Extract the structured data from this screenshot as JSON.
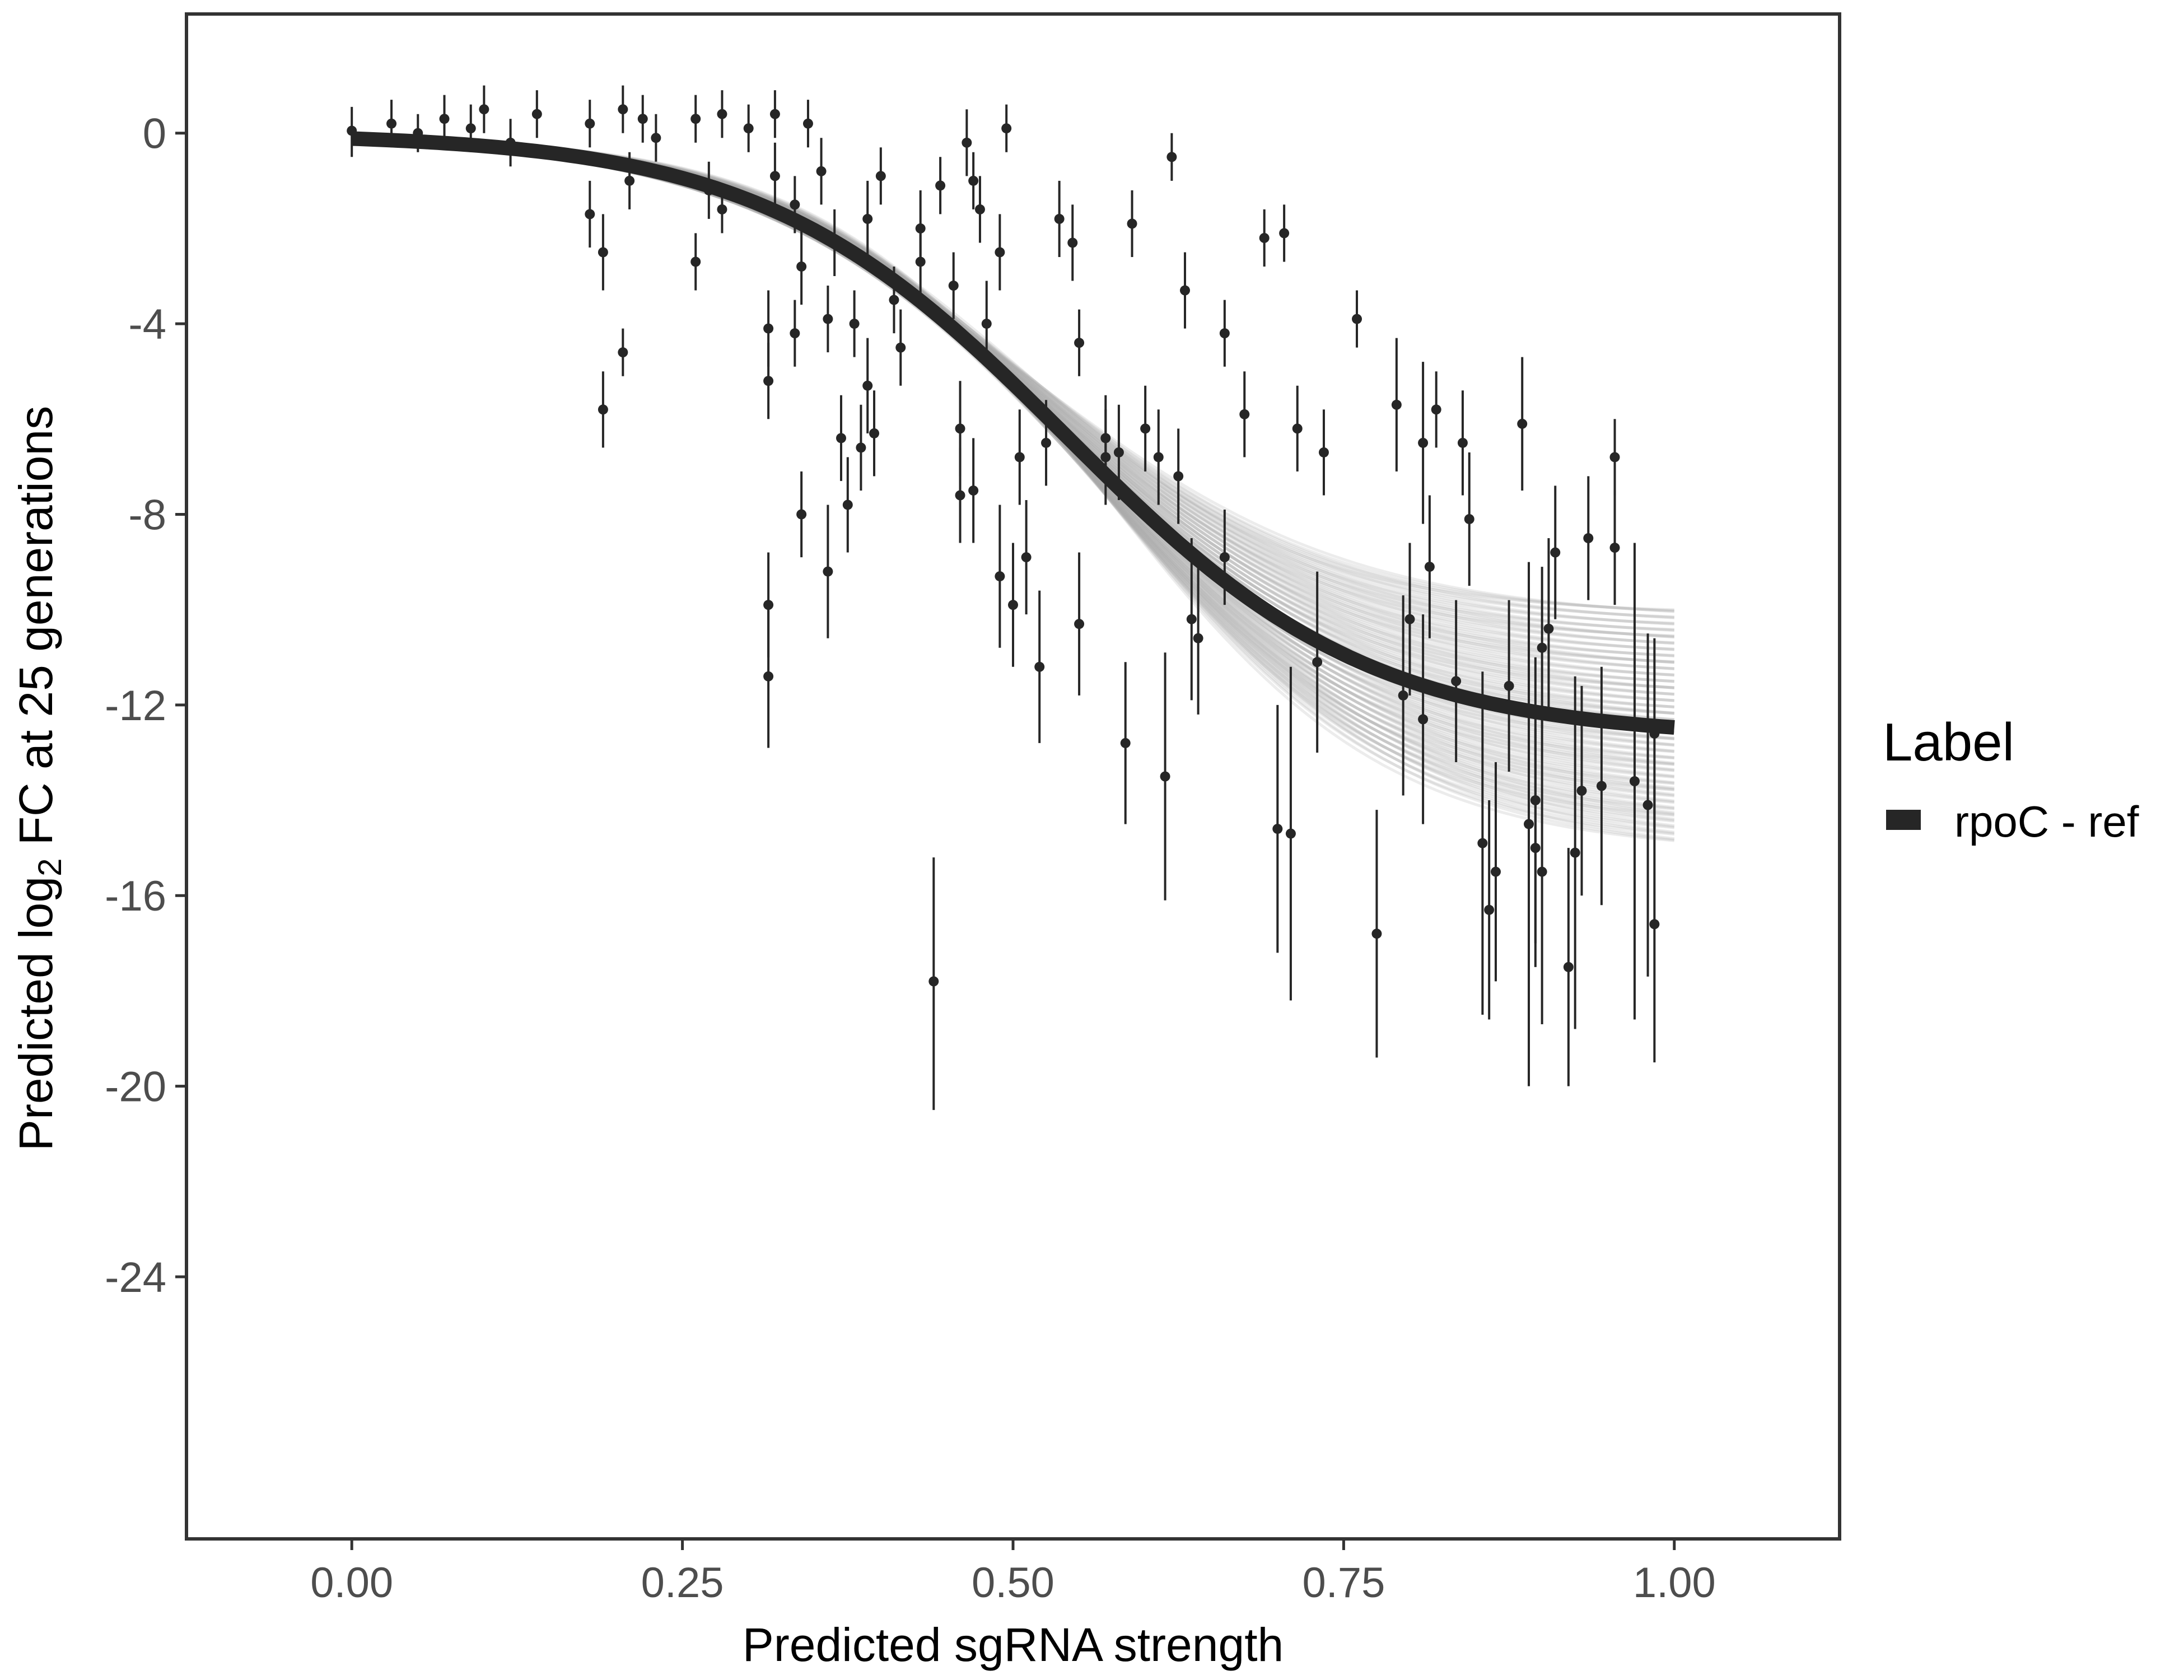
{
  "chart_data": {
    "type": "scatter",
    "xlabel": "Predicted sgRNA strength",
    "ylabel_parts": [
      "Predicted  log",
      "2",
      " FC at 25 generations"
    ],
    "xlim": [
      -0.125,
      1.125
    ],
    "ylim": [
      -29.5,
      2.5
    ],
    "x_ticks": [
      0,
      0.25,
      0.5,
      0.75,
      1
    ],
    "x_tick_labels": [
      "0.00",
      "0.25",
      "0.50",
      "0.75",
      "1.00"
    ],
    "y_ticks": [
      0,
      -4,
      -8,
      -12,
      -16,
      -20,
      -24
    ],
    "y_tick_labels": [
      "0",
      "-4",
      "-8",
      "-12",
      "-16",
      "-20",
      "-24"
    ],
    "grid": false,
    "legend": {
      "title": "Label",
      "position": "right",
      "entries": [
        {
          "label": "rpoC - ref",
          "color": "#262626"
        }
      ]
    },
    "fit_curve": {
      "series": "rpoC - ref",
      "form": "logistic",
      "upper": 0,
      "lower": -12.7,
      "midpoint": 0.54,
      "scale": 0.115,
      "color": "#262626"
    },
    "posterior_band": {
      "color": "#aaaaaa",
      "lower_at_x1": -15.2,
      "upper_at_x1": -10.1
    },
    "points": [
      {
        "x": 0.0,
        "y": 0.05,
        "lo": -0.5,
        "hi": 0.55
      },
      {
        "x": 0.03,
        "y": 0.2,
        "lo": -0.3,
        "hi": 0.7
      },
      {
        "x": 0.05,
        "y": 0.0,
        "lo": -0.4,
        "hi": 0.4
      },
      {
        "x": 0.07,
        "y": 0.3,
        "lo": -0.2,
        "hi": 0.8
      },
      {
        "x": 0.09,
        "y": 0.1,
        "lo": -0.4,
        "hi": 0.6
      },
      {
        "x": 0.1,
        "y": 0.5,
        "lo": 0.0,
        "hi": 1.0
      },
      {
        "x": 0.12,
        "y": -0.2,
        "lo": -0.7,
        "hi": 0.3
      },
      {
        "x": 0.14,
        "y": 0.4,
        "lo": -0.1,
        "hi": 0.9
      },
      {
        "x": 0.18,
        "y": 0.2,
        "lo": -0.3,
        "hi": 0.7
      },
      {
        "x": 0.18,
        "y": -1.7,
        "lo": -2.4,
        "hi": -1.0
      },
      {
        "x": 0.19,
        "y": -2.5,
        "lo": -3.3,
        "hi": -1.7
      },
      {
        "x": 0.19,
        "y": -5.8,
        "lo": -6.6,
        "hi": -5.0
      },
      {
        "x": 0.205,
        "y": -4.6,
        "lo": -5.1,
        "hi": -4.1
      },
      {
        "x": 0.205,
        "y": 0.5,
        "lo": 0.0,
        "hi": 1.0
      },
      {
        "x": 0.21,
        "y": -1.0,
        "lo": -1.6,
        "hi": -0.4
      },
      {
        "x": 0.22,
        "y": 0.3,
        "lo": -0.2,
        "hi": 0.8
      },
      {
        "x": 0.23,
        "y": -0.1,
        "lo": -0.6,
        "hi": 0.4
      },
      {
        "x": 0.26,
        "y": -2.7,
        "lo": -3.3,
        "hi": -2.1
      },
      {
        "x": 0.26,
        "y": 0.3,
        "lo": -0.2,
        "hi": 0.8
      },
      {
        "x": 0.27,
        "y": -1.2,
        "lo": -1.8,
        "hi": -0.6
      },
      {
        "x": 0.28,
        "y": 0.4,
        "lo": -0.1,
        "hi": 0.9
      },
      {
        "x": 0.28,
        "y": -1.6,
        "lo": -2.1,
        "hi": -1.1
      },
      {
        "x": 0.3,
        "y": 0.1,
        "lo": -0.4,
        "hi": 0.6
      },
      {
        "x": 0.315,
        "y": -4.1,
        "lo": -4.9,
        "hi": -3.3
      },
      {
        "x": 0.315,
        "y": -5.2,
        "lo": -6.0,
        "hi": -4.4
      },
      {
        "x": 0.315,
        "y": -9.9,
        "lo": -11.0,
        "hi": -8.8
      },
      {
        "x": 0.315,
        "y": -11.4,
        "lo": -12.9,
        "hi": -9.9
      },
      {
        "x": 0.32,
        "y": -0.9,
        "lo": -1.6,
        "hi": -0.2
      },
      {
        "x": 0.32,
        "y": 0.4,
        "lo": -0.1,
        "hi": 0.9
      },
      {
        "x": 0.335,
        "y": -1.5,
        "lo": -2.1,
        "hi": -0.9
      },
      {
        "x": 0.335,
        "y": -4.2,
        "lo": -4.9,
        "hi": -3.5
      },
      {
        "x": 0.34,
        "y": -2.8,
        "lo": -3.6,
        "hi": -2.0
      },
      {
        "x": 0.34,
        "y": -8.0,
        "lo": -8.9,
        "hi": -7.1
      },
      {
        "x": 0.345,
        "y": 0.2,
        "lo": -0.3,
        "hi": 0.7
      },
      {
        "x": 0.355,
        "y": -0.8,
        "lo": -1.5,
        "hi": -0.1
      },
      {
        "x": 0.36,
        "y": -9.2,
        "lo": -10.6,
        "hi": -7.8
      },
      {
        "x": 0.36,
        "y": -3.9,
        "lo": -4.6,
        "hi": -3.2
      },
      {
        "x": 0.365,
        "y": -2.3,
        "lo": -3.0,
        "hi": -1.6
      },
      {
        "x": 0.37,
        "y": -6.4,
        "lo": -7.3,
        "hi": -5.5
      },
      {
        "x": 0.375,
        "y": -7.8,
        "lo": -8.8,
        "hi": -6.8
      },
      {
        "x": 0.38,
        "y": -4.0,
        "lo": -4.7,
        "hi": -3.3
      },
      {
        "x": 0.385,
        "y": -6.6,
        "lo": -7.5,
        "hi": -5.7
      },
      {
        "x": 0.39,
        "y": -5.3,
        "lo": -6.3,
        "hi": -4.3
      },
      {
        "x": 0.39,
        "y": -1.8,
        "lo": -2.6,
        "hi": -1.0
      },
      {
        "x": 0.395,
        "y": -6.3,
        "lo": -7.2,
        "hi": -5.4
      },
      {
        "x": 0.4,
        "y": -0.9,
        "lo": -1.5,
        "hi": -0.3
      },
      {
        "x": 0.41,
        "y": -3.5,
        "lo": -4.2,
        "hi": -2.8
      },
      {
        "x": 0.415,
        "y": -4.5,
        "lo": -5.3,
        "hi": -3.7
      },
      {
        "x": 0.43,
        "y": -2.0,
        "lo": -2.8,
        "hi": -1.2
      },
      {
        "x": 0.43,
        "y": -2.7,
        "lo": -3.5,
        "hi": -1.9
      },
      {
        "x": 0.44,
        "y": -17.8,
        "lo": -20.5,
        "hi": -15.2
      },
      {
        "x": 0.445,
        "y": -1.1,
        "lo": -1.7,
        "hi": -0.5
      },
      {
        "x": 0.455,
        "y": -3.2,
        "lo": -3.9,
        "hi": -2.5
      },
      {
        "x": 0.46,
        "y": -6.2,
        "lo": -7.2,
        "hi": -5.2
      },
      {
        "x": 0.46,
        "y": -7.6,
        "lo": -8.6,
        "hi": -6.6
      },
      {
        "x": 0.465,
        "y": -0.2,
        "lo": -0.9,
        "hi": 0.5
      },
      {
        "x": 0.47,
        "y": -7.5,
        "lo": -8.6,
        "hi": -6.4
      },
      {
        "x": 0.47,
        "y": -1.0,
        "lo": -1.6,
        "hi": -0.4
      },
      {
        "x": 0.475,
        "y": -1.6,
        "lo": -2.3,
        "hi": -0.9
      },
      {
        "x": 0.48,
        "y": -4.0,
        "lo": -4.9,
        "hi": -3.1
      },
      {
        "x": 0.49,
        "y": -9.3,
        "lo": -10.8,
        "hi": -7.8
      },
      {
        "x": 0.49,
        "y": -2.5,
        "lo": -3.3,
        "hi": -1.7
      },
      {
        "x": 0.495,
        "y": 0.1,
        "lo": -0.4,
        "hi": 0.6
      },
      {
        "x": 0.5,
        "y": -9.9,
        "lo": -11.2,
        "hi": -8.6
      },
      {
        "x": 0.505,
        "y": -6.8,
        "lo": -7.8,
        "hi": -5.8
      },
      {
        "x": 0.51,
        "y": -8.9,
        "lo": -10.1,
        "hi": -7.7
      },
      {
        "x": 0.52,
        "y": -11.2,
        "lo": -12.8,
        "hi": -9.6
      },
      {
        "x": 0.525,
        "y": -6.5,
        "lo": -7.4,
        "hi": -5.6
      },
      {
        "x": 0.535,
        "y": -1.8,
        "lo": -2.6,
        "hi": -1.0
      },
      {
        "x": 0.545,
        "y": -2.3,
        "lo": -3.1,
        "hi": -1.5
      },
      {
        "x": 0.55,
        "y": -4.4,
        "lo": -5.1,
        "hi": -3.7
      },
      {
        "x": 0.55,
        "y": -10.3,
        "lo": -11.8,
        "hi": -8.8
      },
      {
        "x": 0.57,
        "y": -6.8,
        "lo": -7.8,
        "hi": -5.8
      },
      {
        "x": 0.57,
        "y": -6.4,
        "lo": -7.3,
        "hi": -5.5
      },
      {
        "x": 0.58,
        "y": -6.7,
        "lo": -7.7,
        "hi": -5.7
      },
      {
        "x": 0.585,
        "y": -12.8,
        "lo": -14.5,
        "hi": -11.1
      },
      {
        "x": 0.59,
        "y": -1.9,
        "lo": -2.6,
        "hi": -1.2
      },
      {
        "x": 0.6,
        "y": -6.2,
        "lo": -7.1,
        "hi": -5.3
      },
      {
        "x": 0.61,
        "y": -6.8,
        "lo": -7.8,
        "hi": -5.8
      },
      {
        "x": 0.615,
        "y": -13.5,
        "lo": -16.1,
        "hi": -10.9
      },
      {
        "x": 0.62,
        "y": -0.5,
        "lo": -1.0,
        "hi": 0.0
      },
      {
        "x": 0.625,
        "y": -7.2,
        "lo": -8.2,
        "hi": -6.2
      },
      {
        "x": 0.63,
        "y": -3.3,
        "lo": -4.1,
        "hi": -2.5
      },
      {
        "x": 0.635,
        "y": -10.2,
        "lo": -11.9,
        "hi": -8.5
      },
      {
        "x": 0.64,
        "y": -10.6,
        "lo": -12.2,
        "hi": -9.0
      },
      {
        "x": 0.66,
        "y": -8.9,
        "lo": -9.9,
        "hi": -7.9
      },
      {
        "x": 0.66,
        "y": -4.2,
        "lo": -4.9,
        "hi": -3.5
      },
      {
        "x": 0.675,
        "y": -5.9,
        "lo": -6.8,
        "hi": -5.0
      },
      {
        "x": 0.69,
        "y": -2.2,
        "lo": -2.8,
        "hi": -1.6
      },
      {
        "x": 0.7,
        "y": -14.6,
        "lo": -17.2,
        "hi": -12.0
      },
      {
        "x": 0.705,
        "y": -2.1,
        "lo": -2.7,
        "hi": -1.5
      },
      {
        "x": 0.71,
        "y": -14.7,
        "lo": -18.2,
        "hi": -11.2
      },
      {
        "x": 0.715,
        "y": -6.2,
        "lo": -7.1,
        "hi": -5.3
      },
      {
        "x": 0.73,
        "y": -11.1,
        "lo": -13.0,
        "hi": -9.2
      },
      {
        "x": 0.735,
        "y": -6.7,
        "lo": -7.6,
        "hi": -5.8
      },
      {
        "x": 0.76,
        "y": -3.9,
        "lo": -4.5,
        "hi": -3.3
      },
      {
        "x": 0.775,
        "y": -16.8,
        "lo": -19.4,
        "hi": -14.2
      },
      {
        "x": 0.79,
        "y": -5.7,
        "lo": -7.1,
        "hi": -4.3
      },
      {
        "x": 0.795,
        "y": -11.8,
        "lo": -13.9,
        "hi": -9.7
      },
      {
        "x": 0.8,
        "y": -10.2,
        "lo": -11.8,
        "hi": -8.6
      },
      {
        "x": 0.81,
        "y": -6.5,
        "lo": -8.2,
        "hi": -4.8
      },
      {
        "x": 0.81,
        "y": -12.3,
        "lo": -14.5,
        "hi": -10.1
      },
      {
        "x": 0.815,
        "y": -9.1,
        "lo": -10.6,
        "hi": -7.6
      },
      {
        "x": 0.82,
        "y": -5.8,
        "lo": -6.6,
        "hi": -5.0
      },
      {
        "x": 0.835,
        "y": -11.5,
        "lo": -13.2,
        "hi": -9.8
      },
      {
        "x": 0.84,
        "y": -6.5,
        "lo": -7.6,
        "hi": -5.4
      },
      {
        "x": 0.845,
        "y": -8.1,
        "lo": -9.5,
        "hi": -6.7
      },
      {
        "x": 0.855,
        "y": -14.9,
        "lo": -18.5,
        "hi": -11.3
      },
      {
        "x": 0.86,
        "y": -16.3,
        "lo": -18.6,
        "hi": -14.0
      },
      {
        "x": 0.865,
        "y": -15.5,
        "lo": -17.8,
        "hi": -13.2
      },
      {
        "x": 0.875,
        "y": -11.6,
        "lo": -13.4,
        "hi": -9.8
      },
      {
        "x": 0.885,
        "y": -6.1,
        "lo": -7.5,
        "hi": -4.7
      },
      {
        "x": 0.89,
        "y": -14.5,
        "lo": -20.0,
        "hi": -9.0
      },
      {
        "x": 0.895,
        "y": -15.0,
        "lo": -17.5,
        "hi": -12.5
      },
      {
        "x": 0.905,
        "y": -10.4,
        "lo": -12.3,
        "hi": -8.5
      },
      {
        "x": 0.91,
        "y": -8.8,
        "lo": -10.2,
        "hi": -7.4
      },
      {
        "x": 0.92,
        "y": -17.5,
        "lo": -20.0,
        "hi": -15.0
      },
      {
        "x": 0.935,
        "y": -8.5,
        "lo": -9.8,
        "hi": -7.2
      },
      {
        "x": 0.945,
        "y": -13.7,
        "lo": -16.2,
        "hi": -11.2
      },
      {
        "x": 0.955,
        "y": -8.7,
        "lo": -9.9,
        "hi": -7.5
      },
      {
        "x": 0.985,
        "y": -12.6,
        "lo": -14.6,
        "hi": -10.6
      },
      {
        "x": 0.985,
        "y": -16.6,
        "lo": -19.5,
        "hi": -13.7
      },
      {
        "x": 0.955,
        "y": -6.8,
        "lo": -7.6,
        "hi": -6.0
      },
      {
        "x": 0.895,
        "y": -14.0,
        "lo": -17.0,
        "hi": -11.0
      },
      {
        "x": 0.9,
        "y": -15.5,
        "lo": -18.7,
        "hi": -12.3
      },
      {
        "x": 0.9,
        "y": -10.8,
        "lo": -12.5,
        "hi": -9.1
      },
      {
        "x": 0.925,
        "y": -15.1,
        "lo": -18.8,
        "hi": -11.4
      },
      {
        "x": 0.93,
        "y": -13.8,
        "lo": -16.0,
        "hi": -11.6
      },
      {
        "x": 0.97,
        "y": -13.6,
        "lo": -18.6,
        "hi": -8.6
      },
      {
        "x": 0.98,
        "y": -14.1,
        "lo": -17.7,
        "hi": -10.5
      }
    ]
  }
}
